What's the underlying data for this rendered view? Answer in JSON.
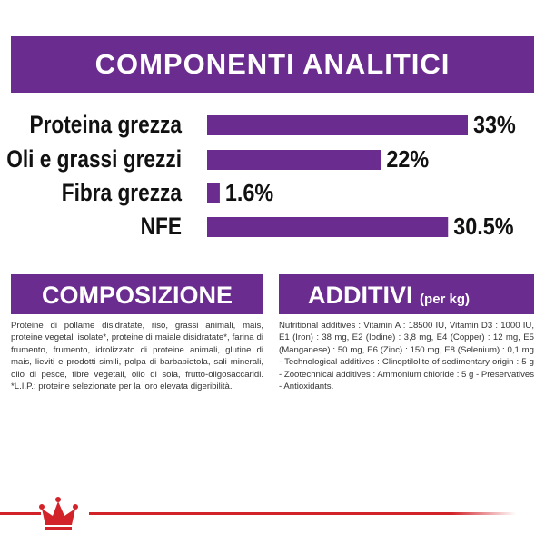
{
  "chart_data": {
    "type": "bar",
    "orientation": "horizontal",
    "title": "COMPONENTI ANALITICI",
    "categories": [
      "Proteina grezza",
      "Oli e grassi grezzi",
      "Fibra grezza",
      "NFE"
    ],
    "values": [
      33,
      22,
      1.6,
      30.5
    ],
    "value_labels": [
      "33%",
      "22%",
      "1.6%",
      "30.5%"
    ],
    "color": "#6a2c8f"
  },
  "composizione": {
    "title": "COMPOSIZIONE",
    "text": "Proteine di pollame disidratate, riso, grassi animali, mais, proteine vegetali isolate*, proteine di maiale disidratate*, farina di frumento, frumento, idrolizzato di proteine animali, glutine di mais, lieviti e prodotti simili, polpa di barbabietola, sali minerali, olio di pesce, fibre vegetali, olio di soia, frutto-oligosaccaridi. *L.I.P.: proteine selezionate per la loro elevata digeribilità."
  },
  "additivi": {
    "title": "ADDITIVI",
    "subtitle": "(per kg)",
    "text": "Nutritional additives : Vitamin A : 18500 IU, Vitamin D3 : 1000 IU, E1 (Iron) : 38 mg, E2 (Iodine) : 3,8 mg, E4 (Copper) : 12 mg, E5 (Manganese) : 50 mg, E6 (Zinc) : 150 mg, E8 (Selenium) : 0,1 mg - Technological additives : Clinoptilolite of sedimentary origin : 5 g - Zootechnical additives : Ammonium chloride : 5 g - Preservatives - Antioxidants."
  }
}
